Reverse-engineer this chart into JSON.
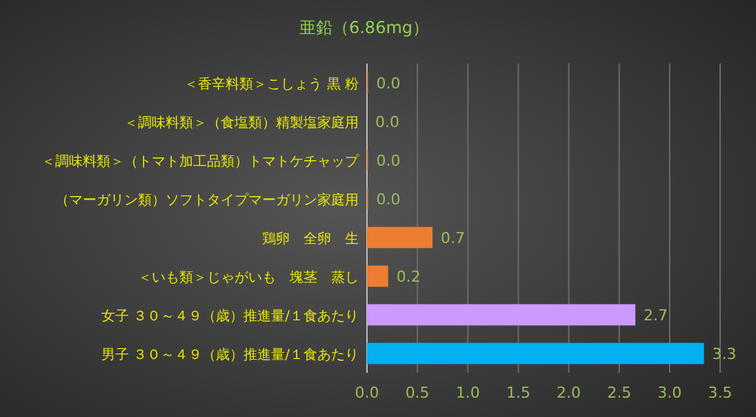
{
  "chart_data": {
    "type": "bar",
    "orientation": "horizontal",
    "title": "亜鉛（6.86mg）",
    "categories": [
      "＜香辛料類＞こしょう 黒 粉",
      "＜調味料類＞（食塩類）精製塩家庭用",
      "＜調味料類＞（トマト加工品類）トマトケチャップ",
      "（マーガリン類）ソフトタイプマーガリン家庭用",
      "鶏卵　全卵　生",
      "＜いも類＞じゃがいも　塊茎　蒸し",
      "女子 ３０～４９（歳）推進量/１食あたり",
      "男子 ３０～４９（歳）推進量/１食あたり"
    ],
    "values": [
      0.01,
      0.0,
      0.01,
      0.01,
      0.65,
      0.21,
      2.66,
      3.34
    ],
    "colors": [
      "#ed7d31",
      "#ed7d31",
      "#ed7d31",
      "#ed7d31",
      "#ed7d31",
      "#ed7d31",
      "#cc99ff",
      "#00b0f0"
    ],
    "value_labels": [
      "0.0",
      "0.0",
      "0.0",
      "0.0",
      "0.7",
      "0.2",
      "2.7",
      "3.3"
    ],
    "xlim": [
      0,
      3.5
    ],
    "xticks": [
      {
        "value": 0,
        "label": "0.0"
      },
      {
        "value": 0.5,
        "label": "0.5"
      },
      {
        "value": 1,
        "label": "1.0"
      },
      {
        "value": 1.5,
        "label": "1.5"
      },
      {
        "value": 2,
        "label": "2.0"
      },
      {
        "value": 2.5,
        "label": "2.5"
      },
      {
        "value": 3,
        "label": "3.0"
      },
      {
        "value": 3.5,
        "label": "3.5"
      }
    ],
    "grid": "x"
  }
}
